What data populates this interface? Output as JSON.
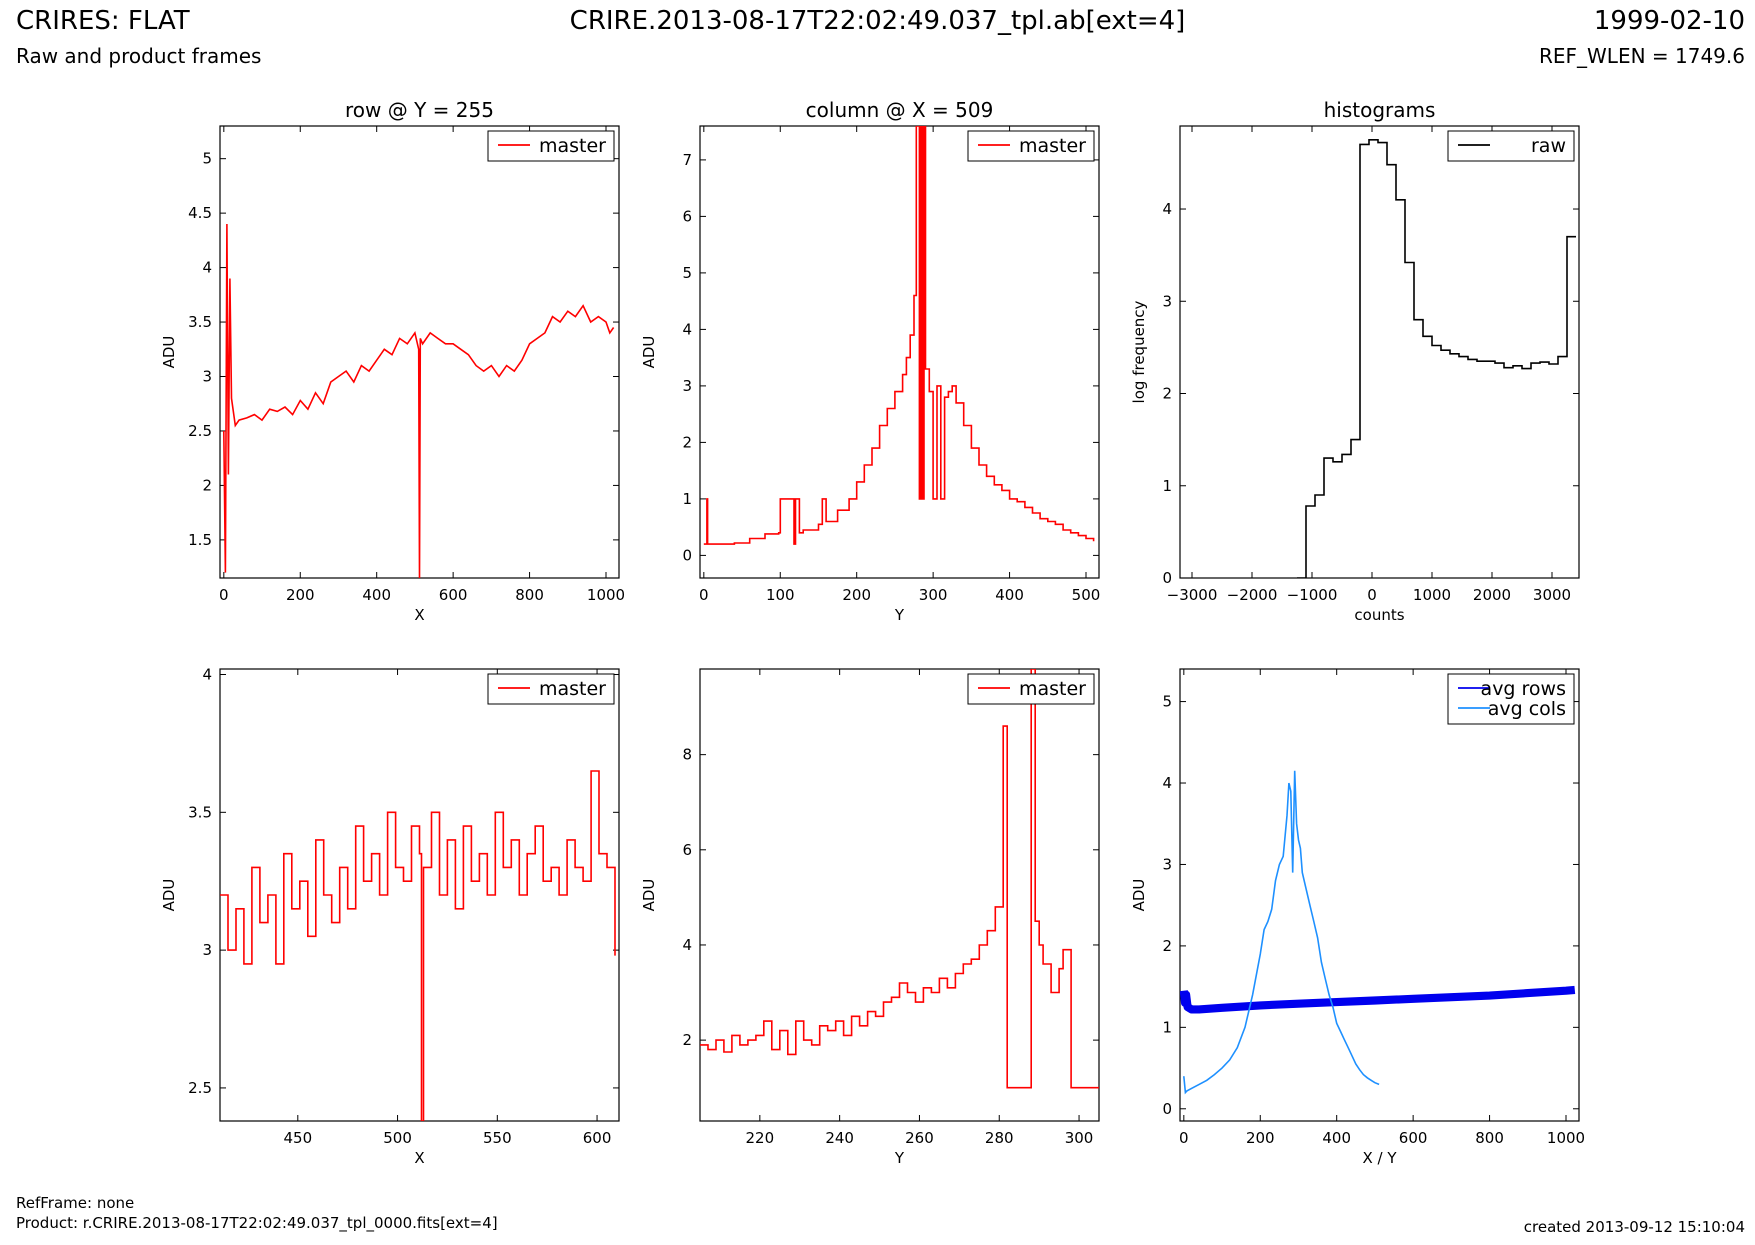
{
  "header": {
    "title": "CRIRES: FLAT",
    "subtitle": "Raw and product frames",
    "file": "CRIRE.2013-08-17T22:02:49.037_tpl.ab[ext=4]",
    "date": "1999-02-10",
    "ref_wlen": "REF_WLEN = 1749.6"
  },
  "footer": {
    "ref_frame": "RefFrame: none",
    "product": "Product: r.CRIRE.2013-08-17T22:02:49.037_tpl_0000.fits[ext=4]",
    "created": "created 2013-09-12 15:10:04"
  },
  "colors": {
    "master": "#ff0000",
    "raw": "#000000",
    "avg_rows": "#0000ee",
    "avg_cols": "#1e90ff"
  },
  "chart_data": [
    {
      "id": "row",
      "type": "line",
      "title": "row @ Y = 255",
      "xlabel": "X",
      "ylabel": "ADU",
      "xlim": [
        -10,
        1034
      ],
      "ylim": [
        1.15,
        5.3
      ],
      "xticks": [
        0,
        200,
        400,
        600,
        800,
        1000
      ],
      "yticks": [
        1.5,
        2.0,
        2.5,
        3.0,
        3.5,
        4.0,
        4.5,
        5.0
      ],
      "legend": [
        "master"
      ],
      "legend_position": "top-right",
      "series": [
        {
          "name": "master",
          "color_key": "master",
          "step": false,
          "x": [
            0,
            4,
            8,
            12,
            16,
            20,
            30,
            40,
            60,
            80,
            100,
            120,
            140,
            160,
            180,
            200,
            220,
            240,
            260,
            280,
            300,
            320,
            340,
            360,
            380,
            400,
            420,
            440,
            460,
            480,
            500,
            510,
            512,
            514,
            520,
            540,
            560,
            580,
            600,
            620,
            640,
            660,
            680,
            700,
            720,
            740,
            760,
            780,
            800,
            820,
            840,
            860,
            880,
            900,
            920,
            940,
            960,
            980,
            1000,
            1010,
            1020
          ],
          "y": [
            2.5,
            1.2,
            4.4,
            2.1,
            3.9,
            2.8,
            2.55,
            2.6,
            2.62,
            2.65,
            2.6,
            2.7,
            2.68,
            2.72,
            2.65,
            2.78,
            2.7,
            2.85,
            2.75,
            2.95,
            3.0,
            3.05,
            2.95,
            3.1,
            3.05,
            3.15,
            3.25,
            3.2,
            3.35,
            3.3,
            3.4,
            3.25,
            1.15,
            3.35,
            3.3,
            3.4,
            3.35,
            3.3,
            3.3,
            3.25,
            3.2,
            3.1,
            3.05,
            3.1,
            3.0,
            3.1,
            3.05,
            3.15,
            3.3,
            3.35,
            3.4,
            3.55,
            3.5,
            3.6,
            3.55,
            3.65,
            3.5,
            3.55,
            3.5,
            3.4,
            3.45
          ]
        }
      ]
    },
    {
      "id": "column",
      "type": "line",
      "title": "column @ X = 509",
      "xlabel": "Y",
      "ylabel": "ADU",
      "xlim": [
        -5,
        517
      ],
      "ylim": [
        -0.4,
        7.6
      ],
      "xticks": [
        0,
        100,
        200,
        300,
        400,
        500
      ],
      "yticks": [
        0,
        1,
        2,
        3,
        4,
        5,
        6,
        7
      ],
      "legend": [
        "master"
      ],
      "legend_position": "top-right",
      "series": [
        {
          "name": "master",
          "color_key": "master",
          "step": true,
          "x": [
            0,
            4,
            5,
            40,
            60,
            80,
            98,
            100,
            110,
            118,
            120,
            125,
            130,
            150,
            155,
            160,
            175,
            190,
            200,
            210,
            220,
            230,
            240,
            250,
            260,
            265,
            270,
            275,
            278,
            282,
            284,
            286,
            288,
            290,
            295,
            300,
            305,
            310,
            315,
            320,
            325,
            330,
            340,
            350,
            360,
            370,
            380,
            390,
            400,
            410,
            420,
            430,
            440,
            450,
            460,
            470,
            480,
            490,
            500,
            510
          ],
          "y": [
            0.2,
            1.0,
            0.2,
            0.22,
            0.3,
            0.38,
            0.4,
            1.0,
            1.0,
            0.2,
            1.0,
            0.4,
            0.45,
            0.55,
            1.0,
            0.6,
            0.8,
            1.0,
            1.3,
            1.6,
            1.9,
            2.3,
            2.6,
            2.9,
            3.2,
            3.5,
            3.9,
            4.6,
            7.6,
            1.0,
            7.6,
            1.0,
            7.6,
            3.3,
            2.9,
            1.0,
            3.0,
            1.0,
            2.8,
            2.9,
            3.0,
            2.7,
            2.3,
            1.9,
            1.6,
            1.4,
            1.25,
            1.15,
            1.0,
            0.95,
            0.85,
            0.75,
            0.65,
            0.6,
            0.55,
            0.45,
            0.4,
            0.35,
            0.3,
            0.25
          ]
        }
      ]
    },
    {
      "id": "histograms",
      "type": "line",
      "title": "histograms",
      "xlabel": "counts",
      "ylabel": "log frequency",
      "xlim": [
        -3200,
        3450
      ],
      "ylim": [
        0,
        4.9
      ],
      "xticks": [
        -3000,
        -2000,
        -1000,
        0,
        1000,
        2000,
        3000
      ],
      "yticks": [
        0,
        1,
        2,
        3,
        4
      ],
      "legend": [
        "raw"
      ],
      "legend_position": "top-right",
      "series": [
        {
          "name": "raw",
          "color_key": "raw",
          "step": true,
          "x": [
            -1250,
            -1100,
            -950,
            -800,
            -650,
            -500,
            -350,
            -200,
            -50,
            100,
            250,
            400,
            550,
            700,
            850,
            1000,
            1150,
            1300,
            1450,
            1600,
            1750,
            1900,
            2050,
            2200,
            2350,
            2500,
            2650,
            2800,
            2950,
            3100,
            3250,
            3400
          ],
          "y": [
            0.0,
            0.78,
            0.9,
            1.3,
            1.26,
            1.34,
            1.5,
            4.7,
            4.75,
            4.72,
            4.48,
            4.1,
            3.42,
            2.8,
            2.62,
            2.52,
            2.47,
            2.43,
            2.4,
            2.37,
            2.35,
            2.35,
            2.33,
            2.28,
            2.3,
            2.27,
            2.33,
            2.34,
            2.32,
            2.4,
            3.7,
            3.7
          ]
        }
      ]
    },
    {
      "id": "row-zoom",
      "type": "line",
      "title": "",
      "xlabel": "X",
      "ylabel": "ADU",
      "xlim": [
        411,
        611
      ],
      "ylim": [
        2.38,
        4.02
      ],
      "xticks": [
        450,
        500,
        550,
        600
      ],
      "yticks": [
        2.5,
        3.0,
        3.5,
        4.0
      ],
      "legend": [
        "master"
      ],
      "legend_position": "top-right",
      "series": [
        {
          "name": "master",
          "color_key": "master",
          "step": true,
          "x": [
            411,
            415,
            419,
            423,
            427,
            431,
            435,
            439,
            443,
            447,
            451,
            455,
            459,
            463,
            467,
            471,
            475,
            479,
            483,
            487,
            491,
            495,
            499,
            503,
            507,
            511,
            512,
            513,
            517,
            521,
            525,
            529,
            533,
            537,
            541,
            545,
            549,
            553,
            557,
            561,
            565,
            569,
            573,
            577,
            581,
            585,
            589,
            593,
            597,
            601,
            605,
            609
          ],
          "y": [
            3.2,
            3.0,
            3.15,
            2.95,
            3.3,
            3.1,
            3.2,
            2.95,
            3.35,
            3.15,
            3.25,
            3.05,
            3.4,
            3.2,
            3.1,
            3.3,
            3.15,
            3.45,
            3.25,
            3.35,
            3.2,
            3.5,
            3.3,
            3.25,
            3.45,
            3.35,
            2.38,
            3.3,
            3.5,
            3.2,
            3.4,
            3.15,
            3.45,
            3.25,
            3.35,
            3.2,
            3.5,
            3.3,
            3.4,
            3.2,
            3.35,
            3.45,
            3.25,
            3.3,
            3.2,
            3.4,
            3.3,
            3.25,
            3.65,
            3.35,
            3.3,
            2.98
          ]
        }
      ]
    },
    {
      "id": "column-zoom",
      "type": "line",
      "title": "",
      "xlabel": "Y",
      "ylabel": "ADU",
      "xlim": [
        205,
        305
      ],
      "ylim": [
        0.3,
        9.8
      ],
      "xticks": [
        220,
        240,
        260,
        280,
        300
      ],
      "yticks": [
        2,
        4,
        6,
        8
      ],
      "legend": [
        "master"
      ],
      "legend_position": "top-right",
      "series": [
        {
          "name": "master",
          "color_key": "master",
          "step": true,
          "x": [
            205,
            207,
            209,
            211,
            213,
            215,
            217,
            219,
            221,
            223,
            225,
            227,
            229,
            231,
            233,
            235,
            237,
            239,
            241,
            243,
            245,
            247,
            249,
            251,
            253,
            255,
            257,
            259,
            261,
            263,
            265,
            267,
            269,
            271,
            273,
            275,
            277,
            279,
            281,
            282,
            288,
            289,
            290,
            291,
            293,
            295,
            296,
            297,
            298,
            305
          ],
          "y": [
            1.9,
            1.8,
            2.0,
            1.75,
            2.1,
            1.9,
            2.0,
            2.1,
            2.4,
            1.8,
            2.2,
            1.7,
            2.4,
            2.0,
            1.9,
            2.3,
            2.2,
            2.4,
            2.1,
            2.5,
            2.3,
            2.6,
            2.5,
            2.8,
            2.9,
            3.2,
            3.0,
            2.8,
            3.1,
            3.0,
            3.3,
            3.1,
            3.4,
            3.6,
            3.7,
            4.0,
            4.3,
            4.8,
            8.6,
            1.0,
            9.8,
            4.5,
            4.0,
            3.6,
            3.0,
            3.5,
            3.9,
            3.9,
            1.0,
            1.0
          ]
        }
      ]
    },
    {
      "id": "averages",
      "type": "line",
      "title": "",
      "xlabel": "X / Y",
      "ylabel": "ADU",
      "xlim": [
        -10,
        1034
      ],
      "ylim": [
        -0.15,
        5.4
      ],
      "xticks": [
        0,
        200,
        400,
        600,
        800,
        1000
      ],
      "yticks": [
        0,
        1,
        2,
        3,
        4,
        5
      ],
      "legend": [
        "avg rows",
        "avg cols"
      ],
      "legend_position": "top-right",
      "series": [
        {
          "name": "avg rows",
          "color_key": "avg_rows",
          "step": false,
          "band": 0.05,
          "x": [
            0,
            3,
            6,
            10,
            20,
            40,
            100,
            200,
            300,
            400,
            500,
            600,
            700,
            800,
            900,
            1000,
            1023
          ],
          "y": [
            1.45,
            1.3,
            1.4,
            1.25,
            1.22,
            1.22,
            1.24,
            1.27,
            1.29,
            1.31,
            1.33,
            1.35,
            1.37,
            1.39,
            1.42,
            1.45,
            1.46
          ]
        },
        {
          "name": "avg cols",
          "color_key": "avg_cols",
          "step": false,
          "x": [
            0,
            4,
            8,
            20,
            40,
            60,
            80,
            100,
            120,
            140,
            160,
            180,
            200,
            210,
            220,
            230,
            240,
            250,
            260,
            270,
            275,
            280,
            285,
            290,
            295,
            300,
            305,
            310,
            320,
            330,
            340,
            350,
            360,
            370,
            380,
            390,
            400,
            410,
            420,
            430,
            440,
            450,
            460,
            470,
            480,
            490,
            500,
            511
          ],
          "y": [
            0.4,
            0.2,
            0.22,
            0.25,
            0.3,
            0.35,
            0.42,
            0.5,
            0.6,
            0.75,
            1.0,
            1.4,
            1.9,
            2.2,
            2.3,
            2.45,
            2.8,
            3.0,
            3.1,
            3.6,
            4.0,
            3.9,
            2.9,
            4.15,
            3.5,
            3.3,
            3.2,
            2.9,
            2.7,
            2.5,
            2.3,
            2.1,
            1.8,
            1.6,
            1.4,
            1.25,
            1.05,
            0.95,
            0.85,
            0.75,
            0.65,
            0.55,
            0.48,
            0.42,
            0.38,
            0.35,
            0.32,
            0.3
          ]
        }
      ]
    }
  ]
}
